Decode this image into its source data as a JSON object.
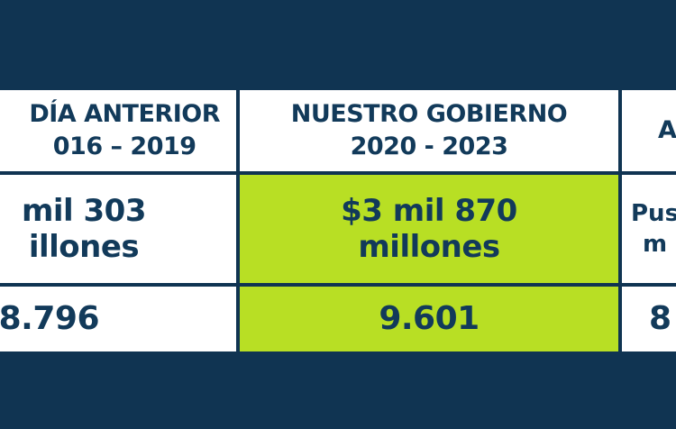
{
  "header": {
    "col_prev": "DÍA ANTERIOR\n016 – 2019",
    "col_ours": "NUESTRO GOBIERNO\n2020 - 2023",
    "col_next": "A"
  },
  "row_amount": {
    "prev": "mil 303\nillones",
    "ours": "$3 mil 870\nmillones",
    "next": "Pus\nm"
  },
  "row_count": {
    "prev": "8.796",
    "ours": "9.601",
    "next": "8"
  },
  "colors": {
    "background": "#103452",
    "highlight": "#b8df24",
    "text": "#123a5a"
  }
}
